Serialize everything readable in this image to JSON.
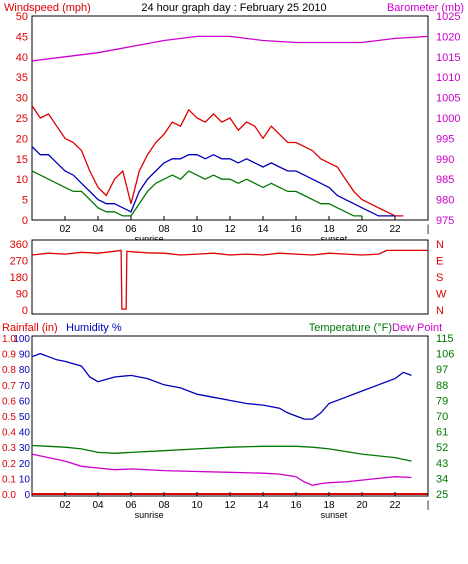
{
  "title": "24 hour graph day : February 25 2010",
  "colors": {
    "wind": "#dd0000",
    "wind_avg": "#0000bb",
    "wind_low": "#007700",
    "baro": "#cc00cc",
    "dir": "#dd0000",
    "humidity": "#0000bb",
    "temp": "#007700",
    "dew": "#cc00cc",
    "rain": "#dd0000",
    "axis": "#000000"
  },
  "time_axis": {
    "ticks": [
      "02",
      "04",
      "06",
      "08",
      "10",
      "12",
      "14",
      "16",
      "18",
      "20",
      "22",
      "|"
    ],
    "sunrise_label": "sunrise",
    "sunset_label": "sunset",
    "sunrise_hour": 7.1,
    "sunset_hour": 18.3
  },
  "chart_data": [
    {
      "type": "line",
      "name": "wind-barometer",
      "left_axis_label": "Windspeed (mph)",
      "right_axis_label": "Barometer (mb)",
      "left_ticks": [
        "0",
        "5",
        "10",
        "15",
        "20",
        "25",
        "30",
        "35",
        "40",
        "45",
        "50"
      ],
      "right_ticks": [
        "975",
        "980",
        "985",
        "990",
        "995",
        "1000",
        "1005",
        "1010",
        "1015",
        "1020",
        "1025"
      ],
      "ylim_left": [
        0,
        50
      ],
      "ylim_right": [
        975,
        1025
      ],
      "xlim": [
        0,
        24
      ],
      "series": [
        {
          "key": "gust",
          "axis": "left",
          "x": [
            0,
            0.5,
            1,
            1.5,
            2,
            2.5,
            3,
            3.5,
            4,
            4.5,
            5,
            5.5,
            6,
            6.5,
            7,
            7.5,
            8,
            8.5,
            9,
            9.5,
            10,
            10.5,
            11,
            11.5,
            12,
            12.5,
            13,
            13.5,
            14,
            14.5,
            15,
            15.5,
            16,
            16.5,
            17,
            17.5,
            18,
            18.5,
            19,
            19.5,
            20,
            20.5,
            21,
            21.5,
            22,
            22.5
          ],
          "values": [
            28,
            25,
            26,
            23,
            20,
            19,
            17,
            12,
            8,
            6,
            10,
            12,
            4,
            12,
            16,
            19,
            21,
            24,
            23,
            27,
            25,
            24,
            26,
            24,
            25,
            22,
            24,
            23,
            20,
            23,
            21,
            19,
            19,
            18,
            17,
            15,
            14,
            13,
            10,
            7,
            5,
            4,
            3,
            2,
            1,
            1
          ]
        },
        {
          "key": "avg",
          "axis": "left",
          "x": [
            0,
            0.5,
            1,
            1.5,
            2,
            2.5,
            3,
            3.5,
            4,
            4.5,
            5,
            5.5,
            6,
            6.5,
            7,
            7.5,
            8,
            8.5,
            9,
            9.5,
            10,
            10.5,
            11,
            11.5,
            12,
            12.5,
            13,
            13.5,
            14,
            14.5,
            15,
            15.5,
            16,
            16.5,
            17,
            17.5,
            18,
            18.5,
            19,
            19.5,
            20,
            20.5,
            21,
            21.5,
            22
          ],
          "values": [
            18,
            16,
            16,
            14,
            12,
            11,
            9,
            7,
            5,
            4,
            4,
            3,
            2,
            7,
            10,
            12,
            14,
            15,
            15,
            16,
            16,
            15,
            16,
            15,
            15,
            14,
            15,
            14,
            13,
            14,
            13,
            12,
            12,
            11,
            10,
            9,
            8,
            6,
            5,
            4,
            3,
            2,
            1,
            1,
            1
          ]
        },
        {
          "key": "low",
          "axis": "left",
          "x": [
            0,
            0.5,
            1,
            1.5,
            2,
            2.5,
            3,
            3.5,
            4,
            4.5,
            5,
            5.5,
            6,
            6.5,
            7,
            7.5,
            8,
            8.5,
            9,
            9.5,
            10,
            10.5,
            11,
            11.5,
            12,
            12.5,
            13,
            13.5,
            14,
            14.5,
            15,
            15.5,
            16,
            16.5,
            17,
            17.5,
            18,
            18.5,
            19,
            19.5,
            20
          ],
          "values": [
            12,
            11,
            10,
            9,
            8,
            7,
            7,
            5,
            3,
            2,
            2,
            1,
            1,
            4,
            7,
            9,
            10,
            11,
            10,
            12,
            11,
            10,
            11,
            10,
            10,
            9,
            10,
            9,
            8,
            9,
            8,
            7,
            7,
            6,
            5,
            4,
            4,
            3,
            2,
            1,
            1
          ]
        },
        {
          "key": "baro",
          "axis": "right",
          "x": [
            0,
            2,
            4,
            6,
            8,
            10,
            12,
            14,
            16,
            18,
            20,
            22,
            24
          ],
          "values": [
            1014,
            1015,
            1016,
            1017.5,
            1019,
            1020,
            1020,
            1019,
            1018.5,
            1018.5,
            1018.5,
            1019.5,
            1020
          ]
        }
      ]
    },
    {
      "type": "line",
      "name": "wind-direction",
      "left_ticks": [
        "0",
        "90",
        "180",
        "270",
        "360"
      ],
      "right_ticks": [
        "N",
        "W",
        "S",
        "E",
        "N"
      ],
      "ylim": [
        0,
        360
      ],
      "xlim": [
        0,
        24
      ],
      "series": [
        {
          "key": "direction",
          "x": [
            0,
            1,
            2,
            3,
            4,
            5,
            5.4,
            5.45,
            5.7,
            5.75,
            6,
            7,
            8,
            9,
            10,
            11,
            12,
            13,
            14,
            15,
            16,
            17,
            18,
            19,
            20,
            21,
            21.5,
            22,
            24
          ],
          "values": [
            300,
            310,
            305,
            315,
            310,
            320,
            325,
            5,
            5,
            320,
            318,
            312,
            310,
            300,
            305,
            310,
            300,
            305,
            300,
            310,
            305,
            300,
            310,
            305,
            300,
            305,
            325,
            325,
            325
          ]
        }
      ]
    },
    {
      "type": "line",
      "name": "rain-humidity-temperature",
      "rain_label": "Rainfall (in)",
      "humidity_label": "Humidity %",
      "temp_label": "Temperature (°F)",
      "dew_label": "Dew Point",
      "rain_ticks": [
        "0.0",
        "0.1",
        "0.2",
        "0.3",
        "0.4",
        "0.5",
        "0.6",
        "0.7",
        "0.8",
        "0.9",
        "1.0"
      ],
      "humidity_ticks": [
        "0",
        "10",
        "20",
        "30",
        "40",
        "50",
        "60",
        "70",
        "80",
        "90",
        "100"
      ],
      "temp_ticks": [
        "25",
        "34",
        "43",
        "52",
        "61",
        "70",
        "79",
        "88",
        "97",
        "106",
        "115"
      ],
      "ylim_left": [
        0,
        100
      ],
      "ylim_right": [
        25,
        115
      ],
      "xlim": [
        0,
        24
      ],
      "series": [
        {
          "key": "humidity",
          "axis": "left",
          "x": [
            0,
            0.5,
            1,
            1.5,
            2,
            3,
            3.5,
            4,
            5,
            6,
            7,
            8,
            9,
            10,
            11,
            12,
            13,
            14,
            15,
            15.5,
            16,
            16.5,
            17,
            17.5,
            18,
            19,
            20,
            21,
            22,
            22.5,
            23
          ],
          "values": [
            88,
            90,
            88,
            86,
            85,
            82,
            75,
            72,
            75,
            76,
            74,
            70,
            68,
            64,
            62,
            60,
            58,
            57,
            55,
            52,
            50,
            48,
            48,
            52,
            58,
            62,
            66,
            70,
            74,
            78,
            76
          ]
        },
        {
          "key": "temperature",
          "axis": "right",
          "x": [
            0,
            1,
            2,
            3,
            4,
            5,
            6,
            8,
            10,
            12,
            14,
            16,
            17,
            18,
            19,
            20,
            21,
            22,
            23
          ],
          "values": [
            53,
            52.5,
            52,
            51,
            49,
            48.5,
            49,
            50,
            51,
            52,
            52.5,
            52.5,
            52,
            51,
            49.5,
            48,
            47,
            46,
            44
          ]
        },
        {
          "key": "dew",
          "axis": "right",
          "x": [
            0,
            1,
            2,
            3,
            4,
            5,
            6,
            8,
            10,
            12,
            14,
            15,
            16,
            16.5,
            17,
            17.5,
            18,
            19,
            20,
            21,
            22,
            23
          ],
          "values": [
            48,
            46,
            44,
            41,
            40,
            39,
            39.5,
            38.5,
            38,
            37.5,
            37,
            36.5,
            35,
            32,
            30,
            31,
            31.5,
            32,
            33,
            34,
            35,
            34.5
          ]
        },
        {
          "key": "rain",
          "axis": "left",
          "x": [
            0,
            24
          ],
          "values": [
            0,
            0
          ]
        }
      ]
    }
  ]
}
